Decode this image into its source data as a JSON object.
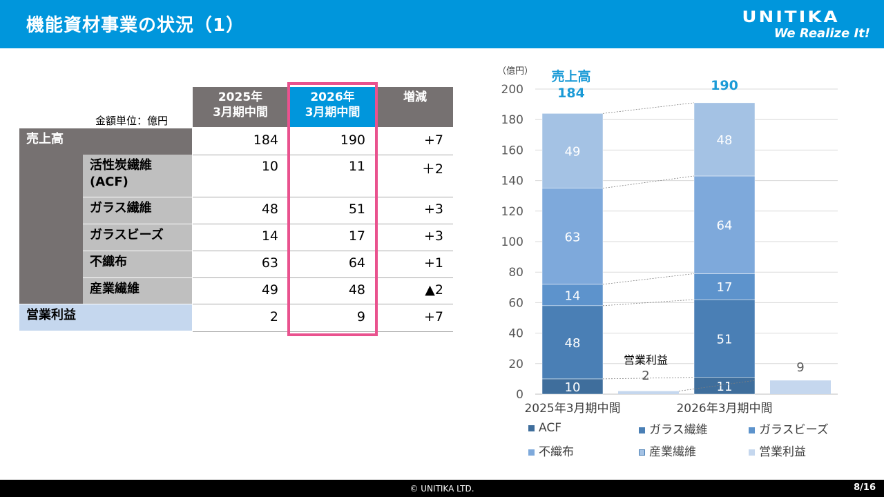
{
  "header": {
    "title": "機能資材事業の状況（1）",
    "logo_main": "UNITIKA",
    "logo_sub": "We Realize It!"
  },
  "footer": {
    "copyright": "© UNITIKA LTD.",
    "page": "8/16"
  },
  "table": {
    "unit": "金額単位：億円",
    "headers": {
      "col1": [
        "2025年",
        "3月期中間"
      ],
      "col2": [
        "2026年",
        "3月期中間"
      ],
      "col3": "増減"
    },
    "rows": [
      {
        "label": "売上高",
        "v1": "184",
        "v2": "190",
        "diff": "+7"
      },
      {
        "label": "活性炭繊維\n(ACF)",
        "v1": "10",
        "v2": "11",
        "diff": "＋2"
      },
      {
        "label": "ガラス繊維",
        "v1": "48",
        "v2": "51",
        "diff": "+3"
      },
      {
        "label": "ガラスビーズ",
        "v1": "14",
        "v2": "17",
        "diff": "+3"
      },
      {
        "label": "不織布",
        "v1": "63",
        "v2": "64",
        "diff": "+1"
      },
      {
        "label": "産業繊維",
        "v1": "49",
        "v2": "48",
        "diff": "▲2"
      },
      {
        "label": "営業利益",
        "v1": "2",
        "v2": "9",
        "diff": "+7"
      }
    ]
  },
  "chart_data": {
    "type": "bar",
    "stacked": true,
    "ylabel": "（億円）",
    "ylim": [
      0,
      200
    ],
    "yticks": [
      0,
      20,
      40,
      60,
      80,
      100,
      120,
      140,
      160,
      180,
      200
    ],
    "grid": true,
    "categories": [
      "2025年3月期中間",
      "2026年3月期中間"
    ],
    "series": [
      {
        "name": "ACF",
        "values": [
          10,
          11
        ],
        "color": "#3f6e9c"
      },
      {
        "name": "ガラス繊維",
        "values": [
          48,
          51
        ],
        "color": "#4a7fb5"
      },
      {
        "name": "ガラスビーズ",
        "values": [
          14,
          17
        ],
        "color": "#5d93cc"
      },
      {
        "name": "不織布",
        "values": [
          63,
          64
        ],
        "color": "#7ea9db"
      },
      {
        "name": "産業繊維",
        "values": [
          49,
          48
        ],
        "color": "#a4c2e4"
      },
      {
        "name": "営業利益",
        "values": [
          2,
          9
        ],
        "color": "#c5d7ee"
      }
    ],
    "totals": {
      "label": "売上高",
      "values": [
        "184",
        "190"
      ],
      "color": "#1a9ad6"
    },
    "profit_label": "営業利益",
    "legend_position": "bottom"
  }
}
